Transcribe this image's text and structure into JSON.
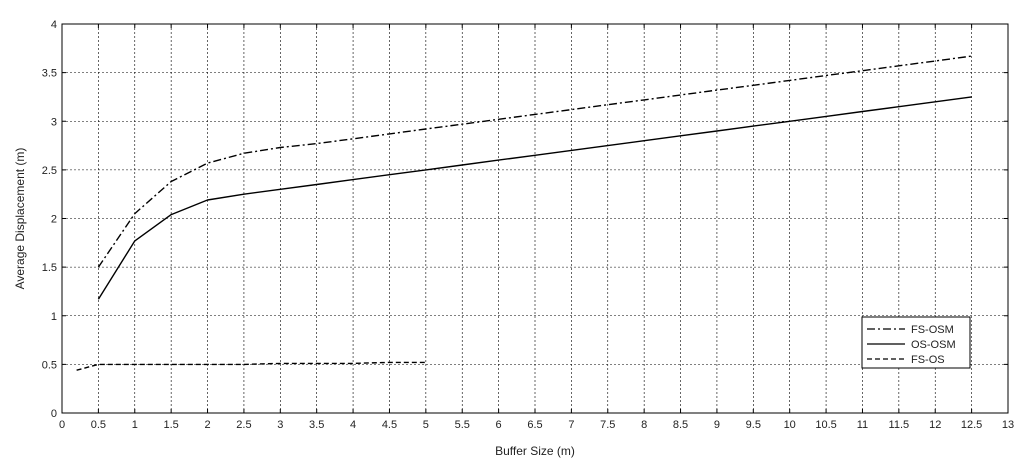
{
  "chart_data": {
    "type": "line",
    "title": "",
    "xlabel": "Buffer Size (m)",
    "ylabel": "Average Displacement (m)",
    "xlim": [
      0,
      13
    ],
    "ylim": [
      0,
      4
    ],
    "xticks": [
      0,
      0.5,
      1,
      1.5,
      2,
      2.5,
      3,
      3.5,
      4,
      4.5,
      5,
      5.5,
      6,
      6.5,
      7,
      7.5,
      8,
      8.5,
      9,
      9.5,
      10,
      10.5,
      11,
      11.5,
      12,
      12.5,
      13
    ],
    "yticks": [
      0,
      0.5,
      1,
      1.5,
      2,
      2.5,
      3,
      3.5,
      4
    ],
    "grid": true,
    "legend_position": "bottom-right",
    "series": [
      {
        "name": "FS-OSM",
        "line_style": "dash-dot",
        "color": "#000000",
        "x": [
          0.5,
          1,
          1.5,
          2,
          2.5,
          3,
          3.5,
          4,
          4.5,
          5,
          5.5,
          6,
          6.5,
          7,
          7.5,
          8,
          8.5,
          9,
          9.5,
          10,
          10.5,
          11,
          11.5,
          12,
          12.5
        ],
        "y": [
          1.5,
          2.05,
          2.38,
          2.57,
          2.67,
          2.73,
          2.77,
          2.82,
          2.87,
          2.92,
          2.97,
          3.02,
          3.07,
          3.12,
          3.17,
          3.22,
          3.27,
          3.32,
          3.37,
          3.42,
          3.47,
          3.52,
          3.57,
          3.62,
          3.67
        ]
      },
      {
        "name": "OS-OSM",
        "line_style": "solid",
        "color": "#000000",
        "x": [
          0.5,
          1,
          1.5,
          2,
          2.5,
          3,
          3.5,
          4,
          4.5,
          5,
          5.5,
          6,
          6.5,
          7,
          7.5,
          8,
          8.5,
          9,
          9.5,
          10,
          10.5,
          11,
          11.5,
          12,
          12.5
        ],
        "y": [
          1.17,
          1.77,
          2.04,
          2.19,
          2.25,
          2.3,
          2.35,
          2.4,
          2.45,
          2.5,
          2.55,
          2.6,
          2.65,
          2.7,
          2.75,
          2.8,
          2.85,
          2.9,
          2.95,
          3.0,
          3.05,
          3.1,
          3.15,
          3.2,
          3.25
        ]
      },
      {
        "name": "FS-OS",
        "line_style": "dashed",
        "color": "#000000",
        "x": [
          0.2,
          0.5,
          1,
          1.5,
          2,
          2.5,
          3,
          3.5,
          4,
          4.5,
          5
        ],
        "y": [
          0.44,
          0.5,
          0.5,
          0.5,
          0.5,
          0.5,
          0.51,
          0.51,
          0.51,
          0.52,
          0.52
        ]
      }
    ]
  }
}
